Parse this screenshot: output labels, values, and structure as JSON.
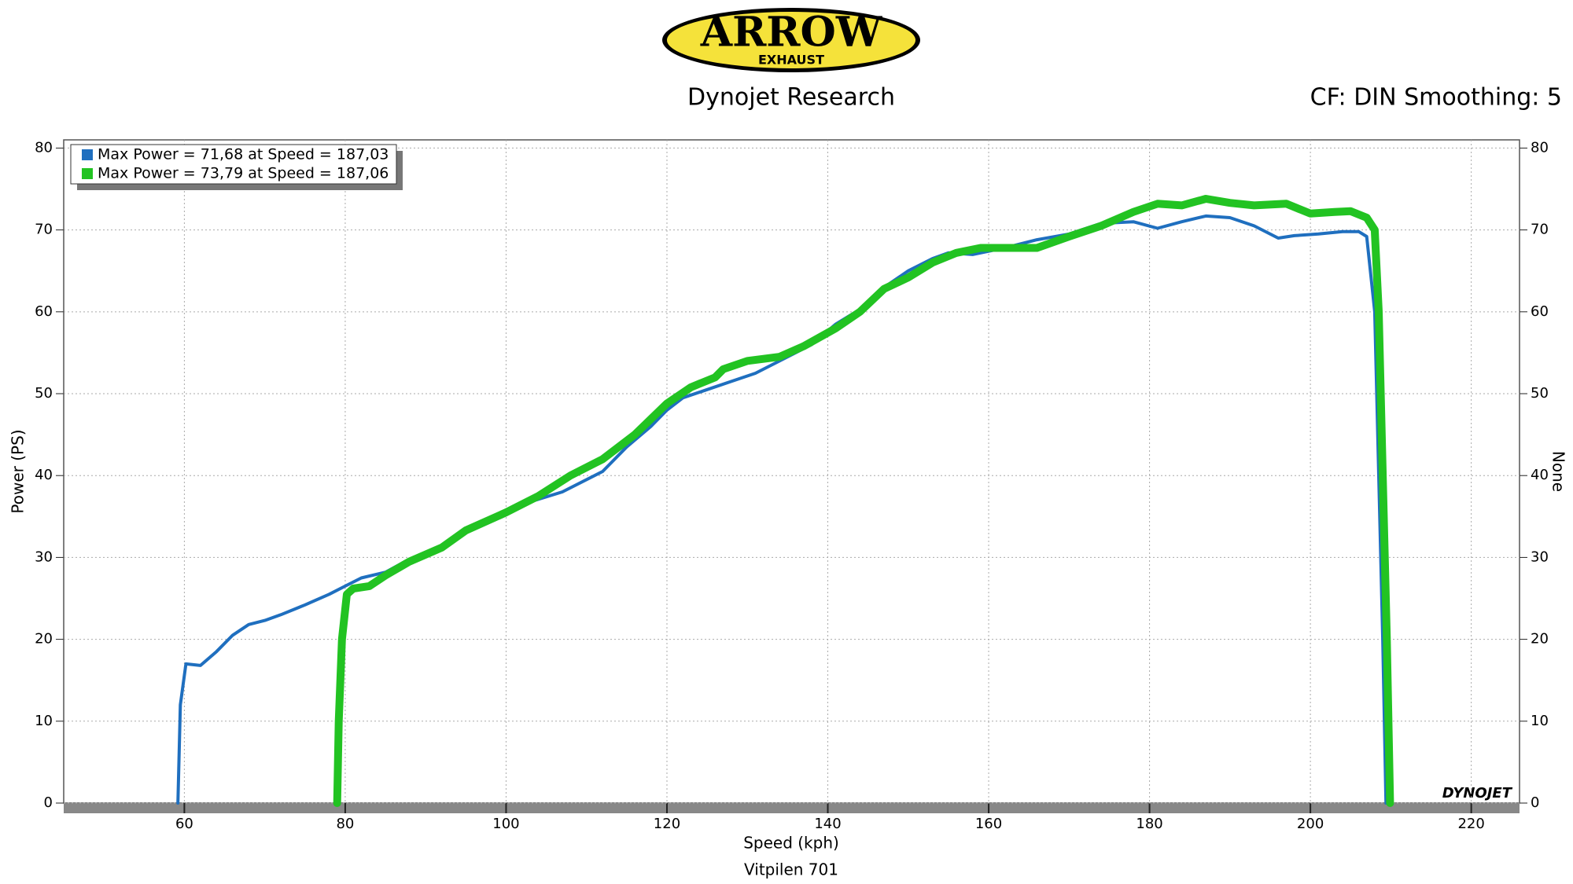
{
  "branding": {
    "logo": "ARROW",
    "logo_sub": "EXHAUST",
    "watermark": "DYNOJET"
  },
  "chart_data": {
    "type": "line",
    "title": "Dynojet Research",
    "subtitle": "CF: DIN Smoothing: 5",
    "x_label": "Speed (kph)",
    "y_label": "Power (PS)",
    "y2_label": "None",
    "caption": "Vitpilen 701",
    "xlim": [
      45,
      226
    ],
    "xticks": [
      60,
      80,
      100,
      120,
      140,
      160,
      180,
      200,
      220
    ],
    "ylim": [
      0,
      81
    ],
    "yticks": [
      0,
      10,
      20,
      30,
      40,
      50,
      60,
      70,
      80
    ],
    "y2lim": [
      0,
      81
    ],
    "y2ticks": [
      0,
      10,
      20,
      30,
      40,
      50,
      60,
      70,
      80
    ],
    "grid": true,
    "legend": "top-left",
    "series": [
      {
        "name": "Max Power = 71,68 at Speed = 187,03",
        "color": "#1f6fbf",
        "x": [
          59.2,
          59.5,
          60.2,
          62,
          64,
          66,
          68,
          70,
          72,
          75,
          78,
          80,
          82,
          85,
          88,
          92,
          95,
          100,
          103,
          107,
          112,
          115,
          118,
          120,
          122,
          125,
          128,
          131,
          135,
          138,
          141,
          144,
          147,
          150,
          153,
          155,
          158,
          162,
          166,
          170,
          174,
          178,
          181,
          184,
          187,
          190,
          193,
          196,
          198,
          201,
          204,
          206,
          207,
          208,
          208.5,
          209,
          209.4
        ],
        "values": [
          0,
          12,
          17,
          16.8,
          18.5,
          20.5,
          21.8,
          22.3,
          23,
          24.2,
          25.5,
          26.5,
          27.5,
          28.2,
          29.8,
          31.2,
          33,
          35.2,
          36.8,
          38,
          40.5,
          43.5,
          46,
          48,
          49.5,
          50.5,
          51.5,
          52.5,
          54.5,
          56,
          58.5,
          60.3,
          63,
          65,
          66.5,
          67.2,
          67,
          67.8,
          68.8,
          69.5,
          70.8,
          71,
          70.2,
          71,
          71.7,
          71.5,
          70.5,
          69,
          69.3,
          69.5,
          69.8,
          69.8,
          69.2,
          60,
          40,
          20,
          0
        ]
      },
      {
        "name": "Max Power = 73,79 at Speed = 187,06",
        "color": "#22c322",
        "x": [
          79,
          79.2,
          79.6,
          80.2,
          81,
          83,
          85,
          88,
          92,
          95,
          100,
          104,
          108,
          112,
          116,
          120,
          123,
          126,
          127,
          130,
          134,
          137,
          141,
          144,
          147,
          150,
          153,
          156,
          159,
          162,
          166,
          170,
          174,
          178,
          181,
          184,
          187,
          190,
          193,
          197,
          200,
          203,
          205,
          207,
          208,
          208.5,
          209,
          209.5,
          209.9
        ],
        "values": [
          0,
          10,
          20,
          25.5,
          26.2,
          26.5,
          27.8,
          29.5,
          31.2,
          33.3,
          35.5,
          37.5,
          40,
          42,
          45,
          48.8,
          50.8,
          52,
          53,
          54,
          54.5,
          55.8,
          58,
          60,
          62.8,
          64.2,
          66,
          67.2,
          67.8,
          67.8,
          67.8,
          69.2,
          70.5,
          72.2,
          73.2,
          73,
          73.8,
          73.3,
          73,
          73.2,
          72,
          72.2,
          72.3,
          71.5,
          70,
          60,
          40,
          20,
          0
        ]
      }
    ]
  }
}
